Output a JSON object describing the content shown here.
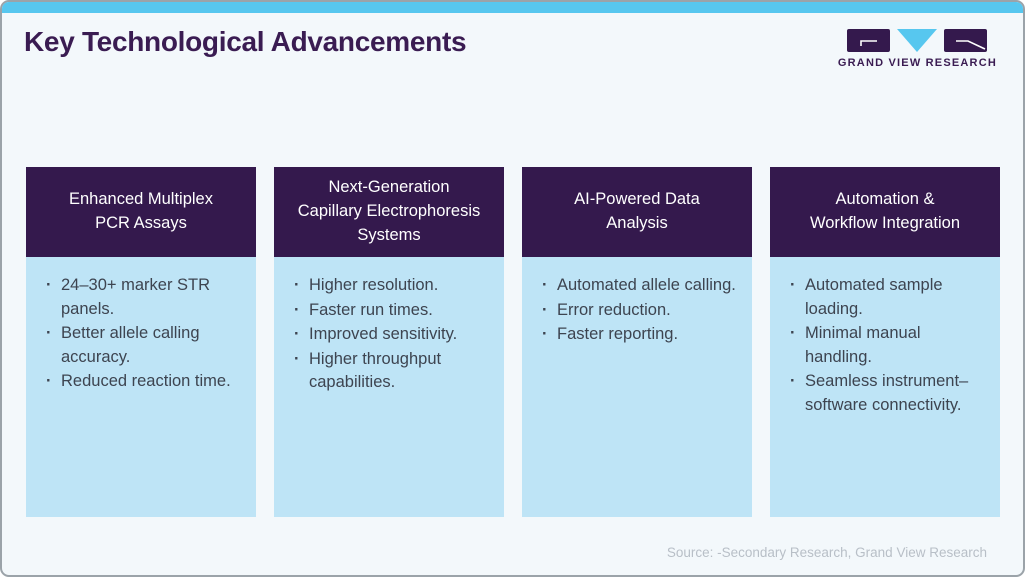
{
  "page": {
    "title": "Key Technological Advancements",
    "source": "Source: -Secondary Research, Grand View Research"
  },
  "logo": {
    "text": "GRAND VIEW RESEARCH"
  },
  "colors": {
    "accent_blue": "#57c7ef",
    "dark_purple": "#34194d",
    "title_purple": "#3a1c52",
    "body_light_blue": "#bee4f6",
    "body_text": "#3d4450",
    "page_background": "#f3f8fb",
    "source_text": "#b8bfc7",
    "card_border": "#9ba3a9"
  },
  "columns": [
    {
      "header_lines": [
        "Enhanced Multiplex",
        "PCR Assays"
      ],
      "bullets": [
        "24–30+ marker STR panels.",
        "Better allele calling accuracy.",
        "Reduced reaction time."
      ]
    },
    {
      "header_lines": [
        "Next-Generation",
        "Capillary Electrophoresis",
        "Systems"
      ],
      "bullets": [
        "Higher resolution.",
        "Faster run times.",
        "Improved sensitivity.",
        "Higher throughput capabilities."
      ]
    },
    {
      "header_lines": [
        "AI-Powered Data",
        "Analysis"
      ],
      "bullets": [
        "Automated allele calling.",
        "Error reduction.",
        "Faster reporting."
      ]
    },
    {
      "header_lines": [
        "Automation &",
        "Workflow Integration"
      ],
      "bullets": [
        "Automated sample loading.",
        "Minimal manual handling.",
        "Seamless instrument–software connectivity."
      ]
    }
  ]
}
